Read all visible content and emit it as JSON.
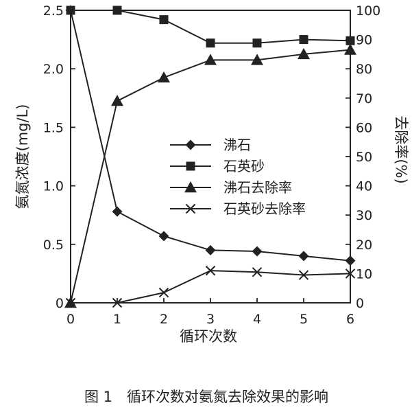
{
  "chart_data": {
    "type": "line",
    "x": [
      0,
      1,
      2,
      3,
      4,
      5,
      6
    ],
    "xlabel": "循环次数",
    "xticks": [
      "0",
      "1",
      "2",
      "3",
      "4",
      "5",
      "6"
    ],
    "xlim": [
      0,
      6
    ],
    "ylabel_left": "氨氮浓度(mg/L)",
    "ylim_left": [
      0,
      2.5
    ],
    "yticks_left": [
      "0",
      "0.5",
      "1.0",
      "1.5",
      "2.0",
      "2.5"
    ],
    "ylabel_right": "去除率(%)",
    "ylim_right": [
      0,
      100
    ],
    "yticks_right": [
      "0",
      "10",
      "20",
      "30",
      "40",
      "50",
      "60",
      "70",
      "80",
      "90",
      "100"
    ],
    "legend_position": "center-right",
    "grid": false,
    "series": [
      {
        "name": "沸石",
        "axis": "left",
        "marker": "diamond",
        "values": [
          2.5,
          0.78,
          0.57,
          0.45,
          0.44,
          0.4,
          0.36
        ]
      },
      {
        "name": "石英砂",
        "axis": "left",
        "marker": "square",
        "values": [
          2.5,
          2.5,
          2.42,
          2.22,
          2.22,
          2.25,
          2.24
        ]
      },
      {
        "name": "沸石去除率",
        "axis": "right",
        "marker": "triangle",
        "values": [
          0,
          69,
          77,
          83,
          83,
          85,
          86.5
        ]
      },
      {
        "name": "石英砂去除率",
        "axis": "right",
        "marker": "x",
        "values": [
          0,
          0,
          3.5,
          11,
          10.5,
          9.5,
          10
        ]
      }
    ],
    "caption": "图 1　循环次数对氨氮去除效果的影响"
  },
  "colors": {
    "ink": "#222222",
    "background": "#ffffff"
  }
}
